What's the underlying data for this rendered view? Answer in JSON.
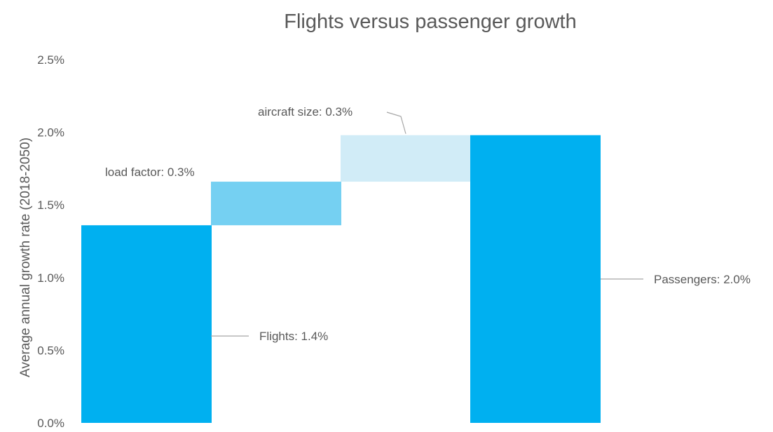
{
  "chart_data": {
    "type": "bar",
    "subtype": "waterfall",
    "title": "Flights versus passenger growth",
    "xlabel": "",
    "ylabel": "Average annual growth rate (2018-2050)",
    "ylim": [
      0,
      0.025
    ],
    "ytick_values": [
      0,
      0.005,
      0.01,
      0.015,
      0.02,
      0.025
    ],
    "ytick_labels": [
      "0.0%",
      "0.5%",
      "1.0%",
      "1.5%",
      "2.0%",
      "2.5%"
    ],
    "grid": false,
    "legend": "none",
    "bars": [
      {
        "base": 0,
        "value": 0.0136,
        "color": "#00b0f0",
        "annotation": "Flights:  1.4%"
      },
      {
        "base": 0.0136,
        "value": 0.003,
        "color": "#75d0f2",
        "annotation": "load factor: 0.3%"
      },
      {
        "base": 0.0166,
        "value": 0.0032,
        "color": "#d1ecf7",
        "annotation": "aircraft size: 0.3%"
      },
      {
        "base": 0,
        "value": 0.0198,
        "color": "#00b0f0",
        "annotation": "Passengers: 2.0%"
      }
    ]
  }
}
